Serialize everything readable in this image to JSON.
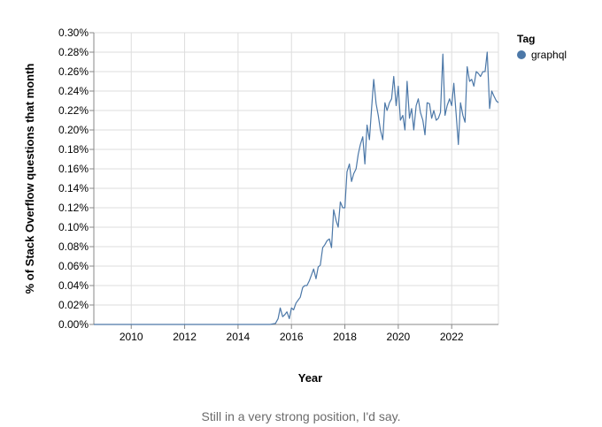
{
  "caption": "Still in a very strong position, I'd say.",
  "chart_data": {
    "type": "line",
    "xlabel": "Year",
    "ylabel": "% of Stack Overflow questions that month",
    "x_ticks": [
      "2010",
      "2012",
      "2014",
      "2016",
      "2018",
      "2020",
      "2022"
    ],
    "y_ticks": [
      "0.00%",
      "0.02%",
      "0.04%",
      "0.06%",
      "0.08%",
      "0.10%",
      "0.12%",
      "0.14%",
      "0.16%",
      "0.18%",
      "0.20%",
      "0.22%",
      "0.24%",
      "0.26%",
      "0.28%",
      "0.30%"
    ],
    "xlim": [
      2008.6,
      2023.75
    ],
    "ylim": [
      0,
      0.3
    ],
    "grid": true,
    "legend": {
      "title": "Tag",
      "placement": "right"
    },
    "line_color": "#4c78a8",
    "series": [
      {
        "name": "graphql",
        "color": "#4c78a8",
        "x": [
          2008.6,
          2015.2,
          2015.4,
          2015.5,
          2015.58,
          2015.67,
          2015.75,
          2015.83,
          2015.92,
          2016.0,
          2016.08,
          2016.17,
          2016.25,
          2016.33,
          2016.42,
          2016.5,
          2016.58,
          2016.67,
          2016.75,
          2016.83,
          2016.92,
          2017.0,
          2017.08,
          2017.17,
          2017.25,
          2017.33,
          2017.42,
          2017.5,
          2017.58,
          2017.67,
          2017.75,
          2017.83,
          2017.92,
          2018.0,
          2018.08,
          2018.17,
          2018.25,
          2018.33,
          2018.42,
          2018.5,
          2018.58,
          2018.67,
          2018.75,
          2018.83,
          2018.92,
          2019.0,
          2019.08,
          2019.17,
          2019.25,
          2019.33,
          2019.42,
          2019.5,
          2019.58,
          2019.67,
          2019.75,
          2019.83,
          2019.92,
          2020.0,
          2020.08,
          2020.17,
          2020.25,
          2020.33,
          2020.42,
          2020.5,
          2020.58,
          2020.67,
          2020.75,
          2020.83,
          2020.92,
          2021.0,
          2021.08,
          2021.17,
          2021.25,
          2021.33,
          2021.42,
          2021.5,
          2021.58,
          2021.67,
          2021.75,
          2021.83,
          2021.92,
          2022.0,
          2022.08,
          2022.17,
          2022.25,
          2022.33,
          2022.42,
          2022.5,
          2022.58,
          2022.67,
          2022.75,
          2022.83,
          2022.92,
          2023.0,
          2023.08,
          2023.17,
          2023.25,
          2023.33,
          2023.42,
          2023.5,
          2023.58,
          2023.67,
          2023.75
        ],
        "values": [
          0.0,
          0.0,
          0.001,
          0.006,
          0.017,
          0.008,
          0.01,
          0.013,
          0.006,
          0.017,
          0.015,
          0.022,
          0.025,
          0.028,
          0.038,
          0.04,
          0.04,
          0.045,
          0.051,
          0.057,
          0.047,
          0.059,
          0.061,
          0.079,
          0.082,
          0.086,
          0.088,
          0.079,
          0.118,
          0.107,
          0.1,
          0.126,
          0.12,
          0.12,
          0.157,
          0.165,
          0.147,
          0.155,
          0.16,
          0.175,
          0.185,
          0.193,
          0.165,
          0.205,
          0.19,
          0.222,
          0.252,
          0.227,
          0.215,
          0.2,
          0.19,
          0.228,
          0.22,
          0.228,
          0.232,
          0.255,
          0.225,
          0.245,
          0.21,
          0.215,
          0.2,
          0.25,
          0.212,
          0.222,
          0.2,
          0.225,
          0.232,
          0.218,
          0.21,
          0.195,
          0.228,
          0.227,
          0.212,
          0.22,
          0.21,
          0.212,
          0.218,
          0.278,
          0.215,
          0.225,
          0.232,
          0.225,
          0.248,
          0.215,
          0.185,
          0.228,
          0.215,
          0.208,
          0.265,
          0.25,
          0.252,
          0.245,
          0.26,
          0.258,
          0.255,
          0.26,
          0.26,
          0.28,
          0.222,
          0.24,
          0.235,
          0.23,
          0.228
        ]
      }
    ]
  }
}
